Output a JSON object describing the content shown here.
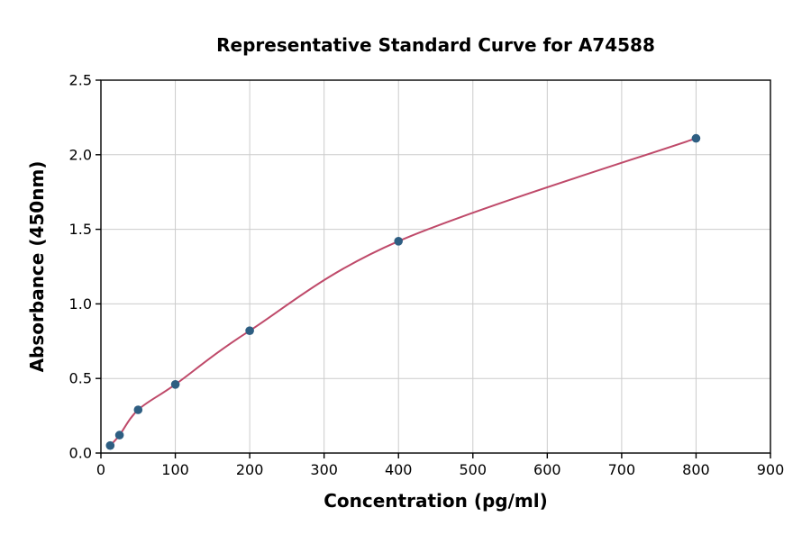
{
  "chart_data": {
    "type": "scatter",
    "title": "Representative Standard Curve for A74588",
    "xlabel": "Concentration (pg/ml)",
    "ylabel": "Absorbance (450nm)",
    "x": [
      12.5,
      25,
      50,
      100,
      200,
      400,
      800
    ],
    "y": [
      0.05,
      0.12,
      0.29,
      0.46,
      0.82,
      1.42,
      2.11
    ],
    "xlim": [
      0,
      900
    ],
    "ylim": [
      0,
      2.5
    ],
    "xticks": [
      0,
      100,
      200,
      300,
      400,
      500,
      600,
      700,
      800,
      900
    ],
    "xtick_labels": [
      "0",
      "100",
      "200",
      "300",
      "400",
      "500",
      "600",
      "700",
      "800",
      "900"
    ],
    "yticks": [
      0,
      0.5,
      1.0,
      1.5,
      2.0,
      2.5
    ],
    "ytick_labels": [
      "0.0",
      "0.5",
      "1.0",
      "1.5",
      "2.0",
      "2.5"
    ],
    "grid": true,
    "legend_position": "none",
    "colors": {
      "curve": "#bf4a6a",
      "points": "#2e5e82",
      "grid": "#cccccc",
      "axis": "#000000",
      "background": "#ffffff"
    }
  }
}
